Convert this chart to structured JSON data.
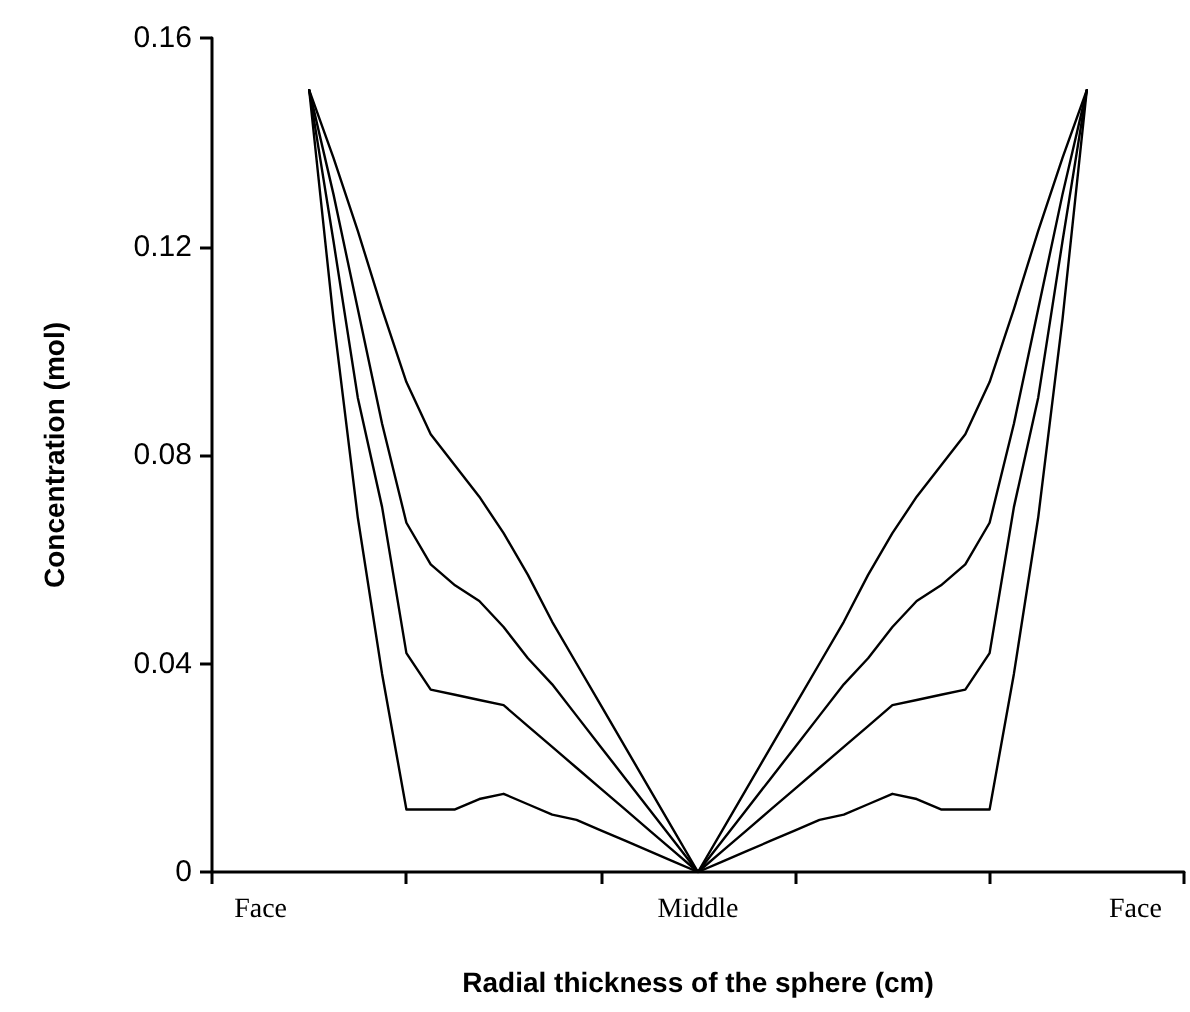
{
  "chart_data": {
    "type": "line",
    "xlabel": "Radial thickness of the sphere (cm)",
    "ylabel": "Concentration (mol)",
    "categories": [
      null,
      null,
      "Face",
      null,
      null,
      null,
      null,
      null,
      null,
      null,
      null,
      null,
      null,
      null,
      null,
      null,
      null,
      null,
      null,
      null,
      "Middle",
      null,
      null,
      null,
      null,
      null,
      null,
      null,
      null,
      null,
      null,
      null,
      null,
      null,
      null,
      null,
      null,
      null,
      "Face",
      null,
      null
    ],
    "ylim": [
      0,
      0.16
    ],
    "yticks": [
      0,
      0.04,
      0.08,
      0.12,
      0.16
    ],
    "grid": false,
    "marker": "none",
    "line_style": "solid",
    "series": [
      {
        "color": "#000000",
        "values": [
          null,
          null,
          null,
          null,
          0.15,
          0.137,
          0.123,
          0.108,
          0.094,
          0.084,
          0.078,
          0.072,
          0.065,
          0.057,
          0.048,
          0.04,
          0.032,
          0.024,
          0.016,
          0.008,
          0,
          0.008,
          0.016,
          0.024,
          0.032,
          0.04,
          0.048,
          0.057,
          0.065,
          0.072,
          0.078,
          0.084,
          0.094,
          0.108,
          0.123,
          0.137,
          0.15,
          null,
          null,
          null,
          null
        ]
      },
      {
        "color": "#000000",
        "values": [
          null,
          null,
          null,
          null,
          0.15,
          0.13,
          0.108,
          0.086,
          0.067,
          0.059,
          0.055,
          0.052,
          0.047,
          0.041,
          0.036,
          0.03,
          0.024,
          0.018,
          0.012,
          0.006,
          0,
          0.006,
          0.012,
          0.018,
          0.024,
          0.03,
          0.036,
          0.041,
          0.047,
          0.052,
          0.055,
          0.059,
          0.067,
          0.086,
          0.108,
          0.13,
          0.15,
          null,
          null,
          null,
          null
        ]
      },
      {
        "color": "#000000",
        "values": [
          null,
          null,
          null,
          null,
          0.15,
          0.121,
          0.091,
          0.07,
          0.042,
          0.035,
          0.034,
          0.033,
          0.032,
          0.028,
          0.024,
          0.02,
          0.016,
          0.012,
          0.008,
          0.004,
          0,
          0.004,
          0.008,
          0.012,
          0.016,
          0.02,
          0.024,
          0.028,
          0.032,
          0.033,
          0.034,
          0.035,
          0.042,
          0.07,
          0.091,
          0.121,
          0.15,
          null,
          null,
          null,
          null
        ]
      },
      {
        "color": "#000000",
        "values": [
          null,
          null,
          null,
          null,
          0.15,
          0.106,
          0.068,
          0.038,
          0.012,
          0.012,
          0.012,
          0.014,
          0.015,
          0.013,
          0.011,
          0.01,
          0.008,
          0.006,
          0.004,
          0.002,
          0,
          0.002,
          0.004,
          0.006,
          0.008,
          0.01,
          0.011,
          0.013,
          0.015,
          0.014,
          0.012,
          0.012,
          0.012,
          0.038,
          0.068,
          0.106,
          0.15,
          null,
          null,
          null,
          null
        ]
      }
    ]
  }
}
